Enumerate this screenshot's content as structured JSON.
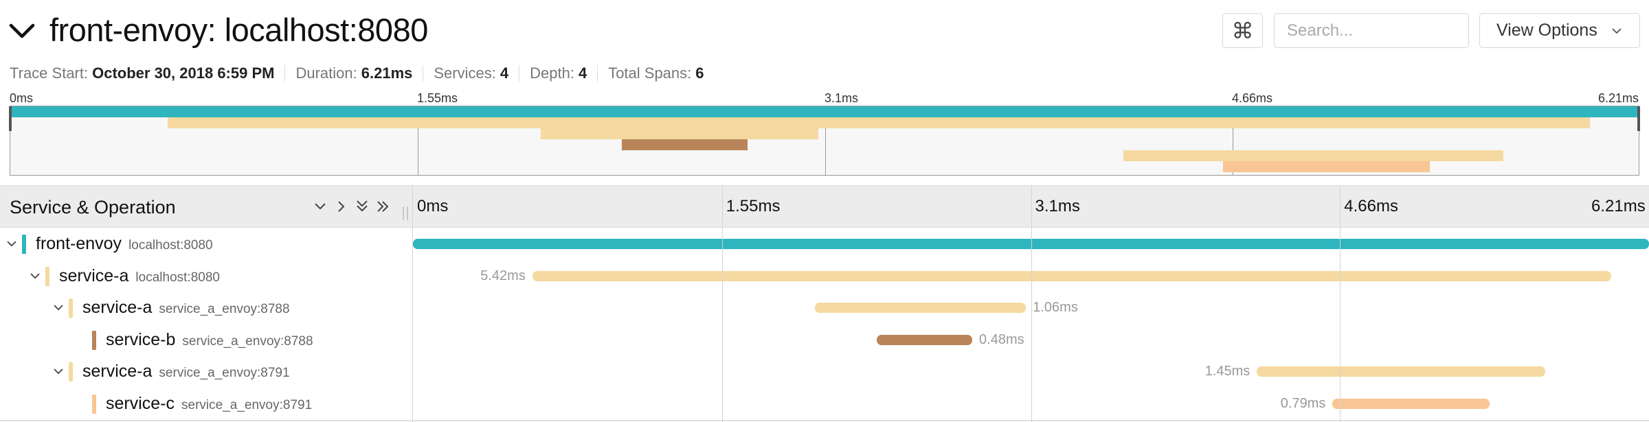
{
  "header": {
    "title": "front-envoy: localhost:8080",
    "cmd_glyph": "⌘",
    "search_placeholder": "Search...",
    "view_options_label": "View Options"
  },
  "meta": [
    {
      "label": "Trace Start:",
      "value": "October 30, 2018 6:59 PM"
    },
    {
      "label": "Duration:",
      "value": "6.21ms"
    },
    {
      "label": "Services:",
      "value": "4"
    },
    {
      "label": "Depth:",
      "value": "4"
    },
    {
      "label": "Total Spans:",
      "value": "6"
    }
  ],
  "ticks": [
    "0ms",
    "1.55ms",
    "3.1ms",
    "4.66ms",
    "6.21ms"
  ],
  "total_duration_ms": 6.21,
  "table_header": {
    "title": "Service & Operation"
  },
  "colors": {
    "front-envoy": "#2fb5bd",
    "service-a": "#f5d9a0",
    "service-b": "#b88458",
    "service-c": "#f8c594"
  },
  "icons": {
    "title_toggle": "chevron-down-icon",
    "collapse_one": "chevron-down-icon",
    "expand_one": "chevron-right-icon",
    "collapse_all": "double-chevron-down-icon",
    "expand_all": "double-chevron-right-icon"
  },
  "spans": [
    {
      "service": "front-envoy",
      "operation": "localhost:8080",
      "depth": 0,
      "start_ms": 0.0,
      "duration_ms": 6.21,
      "duration_label": "",
      "label_side": "none",
      "has_children": true
    },
    {
      "service": "service-a",
      "operation": "localhost:8080",
      "depth": 1,
      "start_ms": 0.6,
      "duration_ms": 5.42,
      "duration_label": "5.42ms",
      "label_side": "left",
      "has_children": true
    },
    {
      "service": "service-a",
      "operation": "service_a_envoy:8788",
      "depth": 2,
      "start_ms": 2.02,
      "duration_ms": 1.06,
      "duration_label": "1.06ms",
      "label_side": "right",
      "has_children": true
    },
    {
      "service": "service-b",
      "operation": "service_a_envoy:8788",
      "depth": 3,
      "start_ms": 2.33,
      "duration_ms": 0.48,
      "duration_label": "0.48ms",
      "label_side": "right",
      "has_children": false
    },
    {
      "service": "service-a",
      "operation": "service_a_envoy:8791",
      "depth": 2,
      "start_ms": 4.24,
      "duration_ms": 1.45,
      "duration_label": "1.45ms",
      "label_side": "left",
      "has_children": true
    },
    {
      "service": "service-c",
      "operation": "service_a_envoy:8791",
      "depth": 3,
      "start_ms": 4.62,
      "duration_ms": 0.79,
      "duration_label": "0.79ms",
      "label_side": "left",
      "has_children": false
    }
  ]
}
